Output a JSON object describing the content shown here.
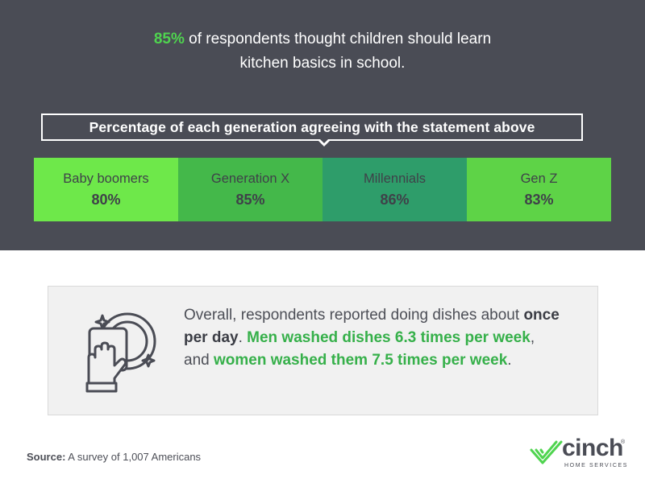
{
  "headline": {
    "accent": "85%",
    "line1_rest": " of respondents thought children should learn",
    "line2": "kitchen basics in school."
  },
  "chart_label": "Percentage of each generation agreeing with the statement above",
  "generations": [
    {
      "name": "Baby boomers",
      "value": "80%",
      "color": "#6ee84a"
    },
    {
      "name": "Generation X",
      "value": "85%",
      "color": "#44b84a"
    },
    {
      "name": "Millennials",
      "value": "86%",
      "color": "#2e9d6a"
    },
    {
      "name": "Gen Z",
      "value": "83%",
      "color": "#5ed347"
    }
  ],
  "card": {
    "icon": "dish-washing-icon",
    "t1": "Overall, respondents reported doing dishes about ",
    "t2": "once per day",
    "t3": ". ",
    "t4": "Men washed dishes 6.3 times per week",
    "t5": ", and ",
    "t6": "women washed them 7.5 times per week",
    "t7": "."
  },
  "source": {
    "label": "Source:",
    "text": " A survey of 1,007 Americans"
  },
  "logo": {
    "word": "cinch",
    "reg": "®",
    "tagline": "HOME SERVICES",
    "accent_color": "#4fd44f"
  },
  "colors": {
    "header_bg": "#4a4c55",
    "accent_green": "#4fd44f",
    "text_green": "#36b04a"
  }
}
